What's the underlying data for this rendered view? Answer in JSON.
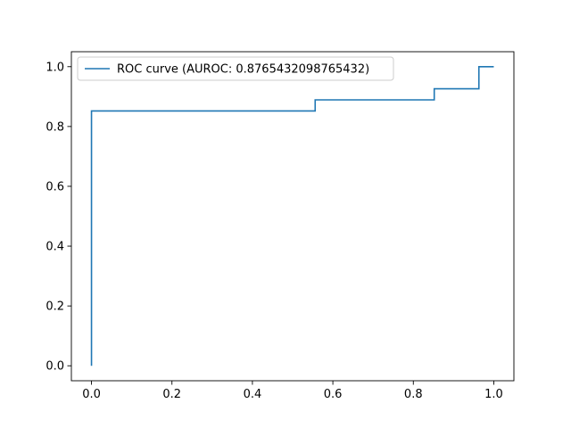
{
  "chart_data": {
    "type": "line",
    "title": "",
    "xlabel": "",
    "ylabel": "",
    "xlim": [
      -0.05,
      1.05
    ],
    "ylim": [
      -0.05,
      1.05
    ],
    "x_ticks": [
      0.0,
      0.2,
      0.4,
      0.6,
      0.8,
      1.0
    ],
    "x_tick_labels": [
      "0.0",
      "0.2",
      "0.4",
      "0.6",
      "0.8",
      "1.0"
    ],
    "y_ticks": [
      0.0,
      0.2,
      0.4,
      0.6,
      0.8,
      1.0
    ],
    "y_tick_labels": [
      "0.0",
      "0.2",
      "0.4",
      "0.6",
      "0.8",
      "1.0"
    ],
    "grid": false,
    "legend_position": "top-left",
    "series": [
      {
        "name": "ROC curve (AUROC: 0.8765432098765432)",
        "color": "#1f77b4",
        "step": true,
        "x": [
          0.0,
          0.0,
          0.0,
          0.556,
          0.556,
          0.852,
          0.852,
          0.963,
          0.963,
          1.0
        ],
        "y": [
          0.0,
          0.852,
          0.852,
          0.852,
          0.889,
          0.889,
          0.926,
          0.926,
          1.0,
          1.0
        ]
      }
    ]
  }
}
